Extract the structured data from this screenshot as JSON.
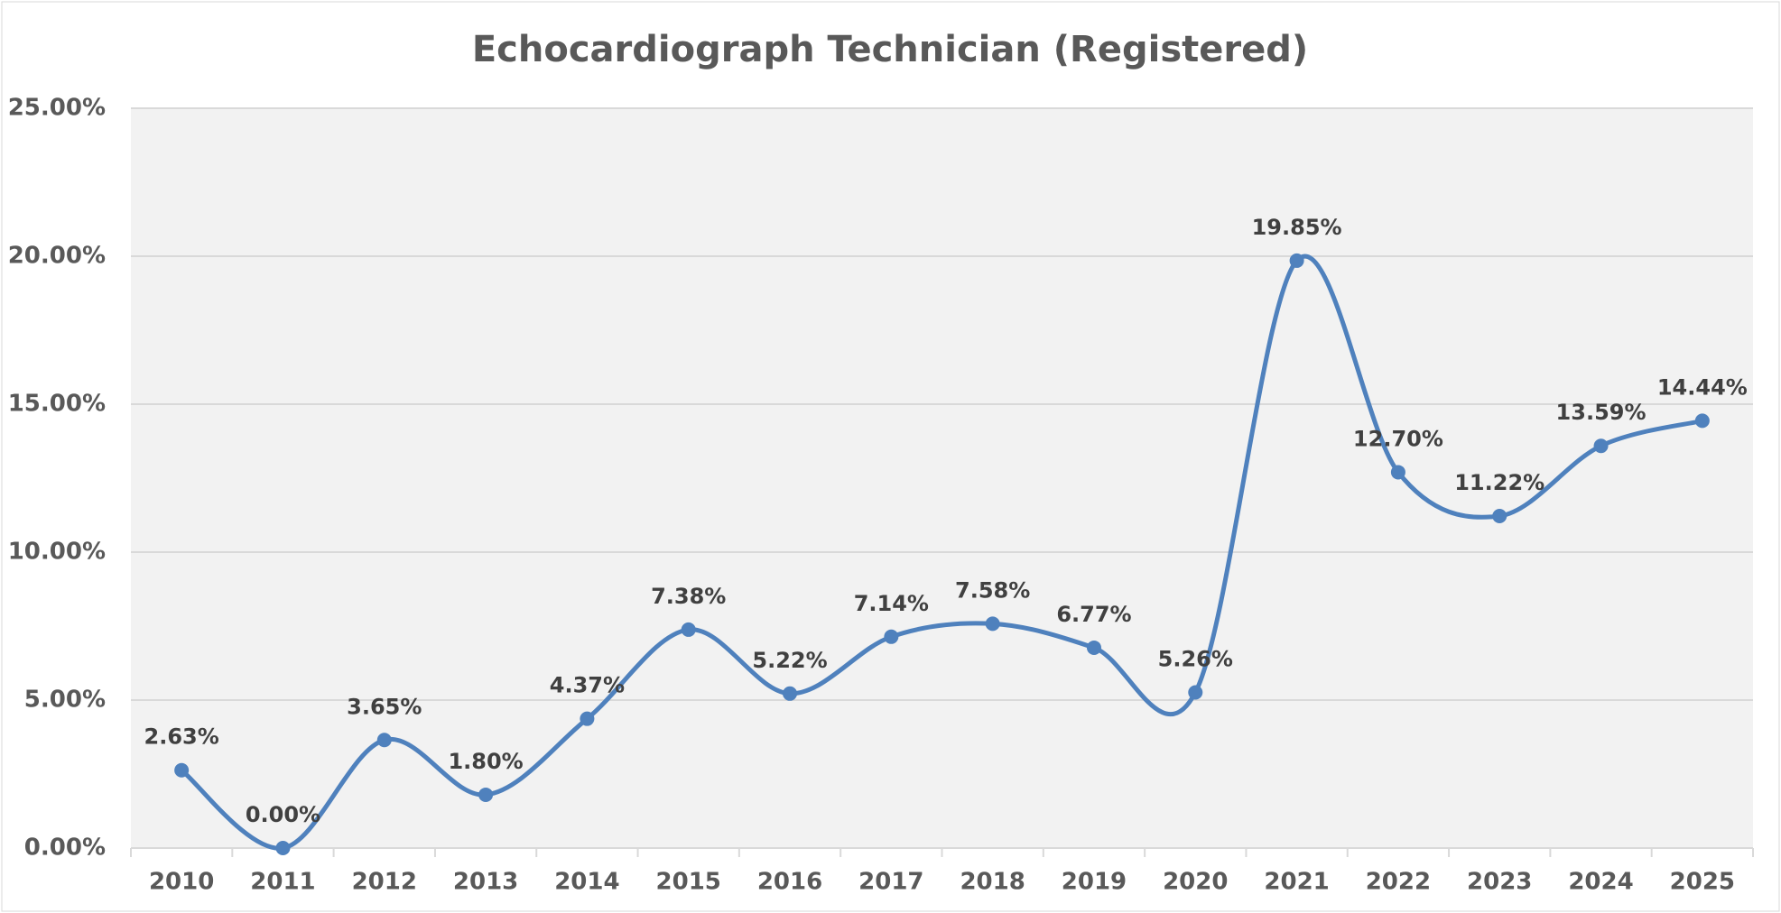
{
  "chart_data": {
    "type": "line",
    "title": "Echocardiograph Technician (Registered)",
    "categories": [
      "2010",
      "2011",
      "2012",
      "2013",
      "2014",
      "2015",
      "2016",
      "2017",
      "2018",
      "2019",
      "2020",
      "2021",
      "2022",
      "2023",
      "2024",
      "2025"
    ],
    "series": [
      {
        "name": "Echocardiograph Technician (Registered)",
        "color": "#4f81bd",
        "values": [
          2.63,
          0,
          3.65,
          1.8,
          4.37,
          7.38,
          5.22,
          7.14,
          7.58,
          6.77,
          5.26,
          19.85,
          12.7,
          11.22,
          13.59,
          14.44
        ],
        "value_labels": [
          "2.63%",
          "0.00%",
          "3.65%",
          "1.80%",
          "4.37%",
          "7.38%",
          "5.22%",
          "7.14%",
          "7.58%",
          "6.77%",
          "5.26%",
          "19.85%",
          "12.70%",
          "11.22%",
          "13.59%",
          "14.44%"
        ]
      }
    ],
    "ylim": [
      0,
      25
    ],
    "yticks": [
      {
        "value": 0,
        "label": "0.00%"
      },
      {
        "value": 5,
        "label": "5.00%"
      },
      {
        "value": 10,
        "label": "10.00%"
      },
      {
        "value": 15,
        "label": "15.00%"
      },
      {
        "value": 20,
        "label": "20.00%"
      },
      {
        "value": 25,
        "label": "25.00%"
      }
    ],
    "grid": true,
    "smooth": true
  }
}
